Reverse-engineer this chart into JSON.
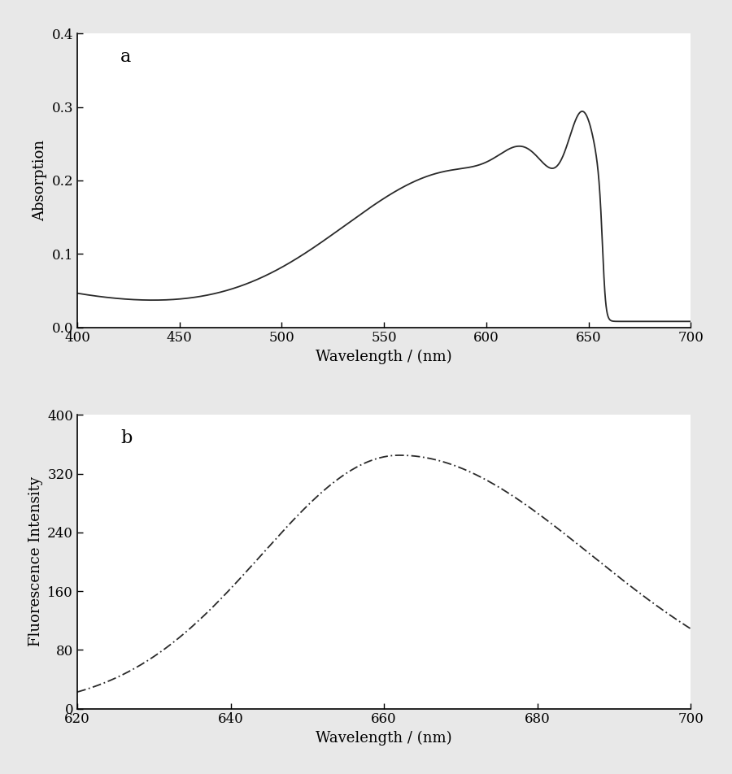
{
  "panel_a": {
    "label": "a",
    "xlabel": "Wavelength / (nm)",
    "ylabel": "Absorption",
    "xlim": [
      400,
      700
    ],
    "ylim": [
      0,
      0.4
    ],
    "xticks": [
      400,
      450,
      500,
      550,
      600,
      650,
      700
    ],
    "yticks": [
      0,
      0.1,
      0.2,
      0.3,
      0.4
    ],
    "linecolor": "#2a2a2a",
    "linewidth": 1.3
  },
  "panel_b": {
    "label": "b",
    "xlabel": "Wavelength / (nm)",
    "ylabel": "Fluorescence Intensity",
    "xlim": [
      620,
      700
    ],
    "ylim": [
      0,
      400
    ],
    "xticks": [
      620,
      640,
      660,
      680,
      700
    ],
    "yticks": [
      0,
      80,
      160,
      240,
      320,
      400
    ],
    "linecolor": "#2a2a2a",
    "linewidth": 1.3
  },
  "background_color": "#ffffff",
  "fig_facecolor": "#e8e8e8",
  "label_fontsize": 13,
  "tick_fontsize": 12,
  "panel_label_fontsize": 16
}
